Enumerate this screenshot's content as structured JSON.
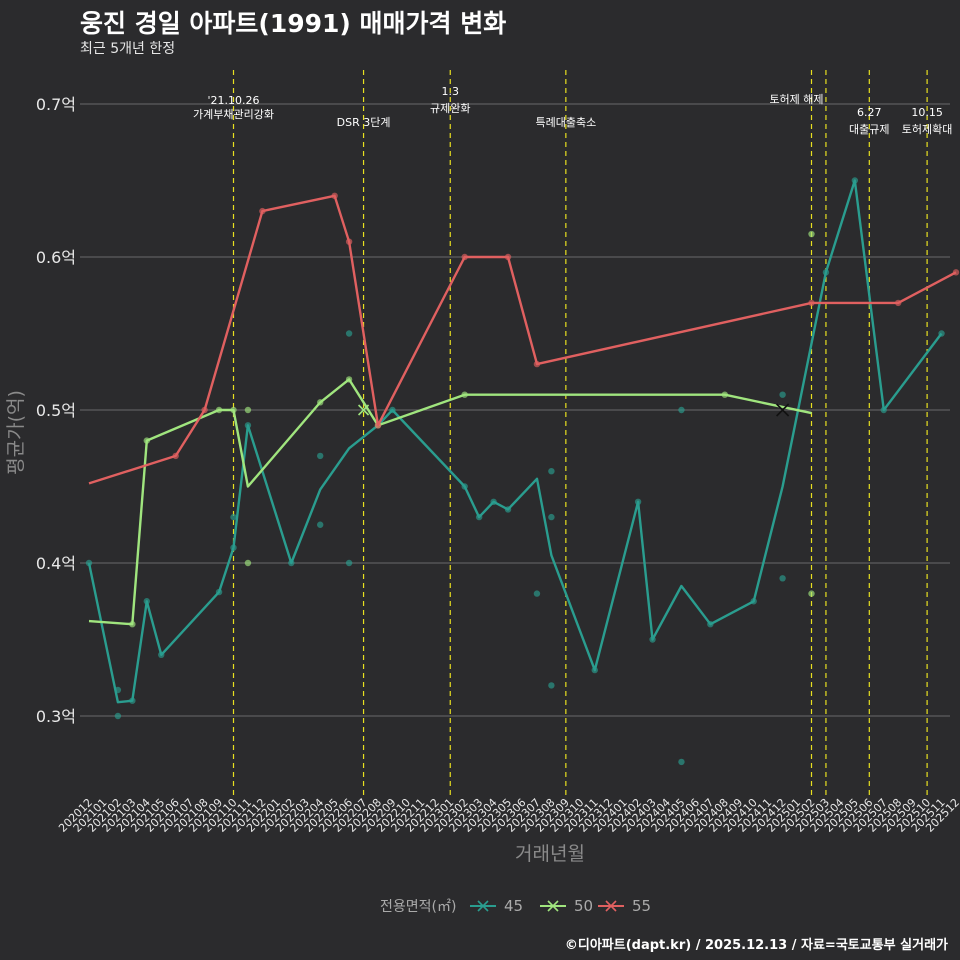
{
  "header": {
    "title": "웅진 경일 아파트(1991) 매매가격 변화",
    "subtitle": "최근 5개년 한정"
  },
  "footer": {
    "caption": "©디아파트(dapt.kr) / 2025.12.13 / 자료=국토교통부 실거래가"
  },
  "chart_data": {
    "type": "line",
    "title": "웅진 경일 아파트(1991) 매매가격 변화",
    "xlabel": "거래년월",
    "ylabel": "평균가(억)",
    "ylim": [
      0.25,
      0.72
    ],
    "yticks": [
      0.3,
      0.4,
      0.5,
      0.6,
      0.7
    ],
    "ytick_labels": [
      "0.3억",
      "0.4억",
      "0.5억",
      "0.6억",
      "0.7억"
    ],
    "categories": [
      "202012",
      "202101",
      "202102",
      "202103",
      "202104",
      "202105",
      "202106",
      "202107",
      "202108",
      "202109",
      "202110",
      "202111",
      "202112",
      "202201",
      "202202",
      "202203",
      "202204",
      "202205",
      "202206",
      "202207",
      "202208",
      "202209",
      "202210",
      "202211",
      "202212",
      "202301",
      "202302",
      "202303",
      "202304",
      "202305",
      "202306",
      "202307",
      "202308",
      "202309",
      "202310",
      "202311",
      "202312",
      "202401",
      "202402",
      "202403",
      "202404",
      "202405",
      "202406",
      "202407",
      "202408",
      "202409",
      "202410",
      "202411",
      "202412",
      "202501",
      "202502",
      "202503",
      "202504",
      "202505",
      "202506",
      "202507",
      "202508",
      "202509",
      "202510",
      "202511",
      "202512"
    ],
    "legend": {
      "title": "전용면적(㎡)",
      "position": "bottom"
    },
    "series": [
      {
        "name": "45",
        "color": "#2a9d8f",
        "line": [
          [
            "202012",
            0.4
          ],
          [
            "202102",
            0.309
          ],
          [
            "202103",
            0.31
          ],
          [
            "202104",
            0.375
          ],
          [
            "202105",
            0.34
          ],
          [
            "202109",
            0.381
          ],
          [
            "202110",
            0.41
          ],
          [
            "202111",
            0.49
          ],
          [
            "202202",
            0.4
          ],
          [
            "202204",
            0.448
          ],
          [
            "202206",
            0.475
          ],
          [
            "202208",
            0.49
          ],
          [
            "202209",
            0.5
          ],
          [
            "202302",
            0.45
          ],
          [
            "202303",
            0.43
          ],
          [
            "202304",
            0.44
          ],
          [
            "202305",
            0.435
          ],
          [
            "202307",
            0.455
          ],
          [
            "202308",
            0.405
          ],
          [
            "202311",
            0.33
          ],
          [
            "202402",
            0.44
          ],
          [
            "202403",
            0.35
          ],
          [
            "202405",
            0.385
          ],
          [
            "202407",
            0.36
          ],
          [
            "202410",
            0.375
          ],
          [
            "202412",
            0.45
          ],
          [
            "202503",
            0.59
          ],
          [
            "202505",
            0.65
          ],
          [
            "202507",
            0.5
          ],
          [
            "202511",
            0.55
          ]
        ],
        "points": [
          [
            "202012",
            0.4
          ],
          [
            "202102",
            0.317
          ],
          [
            "202102",
            0.3
          ],
          [
            "202103",
            0.31
          ],
          [
            "202104",
            0.375
          ],
          [
            "202105",
            0.34
          ],
          [
            "202109",
            0.381
          ],
          [
            "202110",
            0.43
          ],
          [
            "202110",
            0.41
          ],
          [
            "202111",
            0.49
          ],
          [
            "202202",
            0.4
          ],
          [
            "202204",
            0.47
          ],
          [
            "202204",
            0.425
          ],
          [
            "202206",
            0.55
          ],
          [
            "202206",
            0.4
          ],
          [
            "202209",
            0.5
          ],
          [
            "202302",
            0.45
          ],
          [
            "202303",
            0.43
          ],
          [
            "202304",
            0.44
          ],
          [
            "202305",
            0.435
          ],
          [
            "202307",
            0.38
          ],
          [
            "202308",
            0.46
          ],
          [
            "202308",
            0.43
          ],
          [
            "202308",
            0.32
          ],
          [
            "202311",
            0.33
          ],
          [
            "202402",
            0.44
          ],
          [
            "202403",
            0.35
          ],
          [
            "202405",
            0.5
          ],
          [
            "202405",
            0.27
          ],
          [
            "202407",
            0.36
          ],
          [
            "202410",
            0.375
          ],
          [
            "202412",
            0.51
          ],
          [
            "202412",
            0.39
          ],
          [
            "202503",
            0.59
          ],
          [
            "202505",
            0.65
          ],
          [
            "202507",
            0.5
          ],
          [
            "202511",
            0.55
          ]
        ]
      },
      {
        "name": "50",
        "color": "#a0e57e",
        "line": [
          [
            "202012",
            0.362
          ],
          [
            "202103",
            0.36
          ],
          [
            "202104",
            0.48
          ],
          [
            "202109",
            0.5
          ],
          [
            "202110",
            0.5
          ],
          [
            "202111",
            0.45
          ],
          [
            "202204",
            0.505
          ],
          [
            "202206",
            0.52
          ],
          [
            "202208",
            0.49
          ],
          [
            "202302",
            0.51
          ],
          [
            "202408",
            0.51
          ],
          [
            "202502",
            0.498
          ]
        ],
        "points": [
          [
            "202103",
            0.36
          ],
          [
            "202104",
            0.48
          ],
          [
            "202109",
            0.5
          ],
          [
            "202110",
            0.5
          ],
          [
            "202111",
            0.5
          ],
          [
            "202111",
            0.4
          ],
          [
            "202204",
            0.505
          ],
          [
            "202206",
            0.52
          ],
          [
            "202208",
            0.49
          ],
          [
            "202302",
            0.51
          ],
          [
            "202408",
            0.51
          ],
          [
            "202502",
            0.615
          ],
          [
            "202502",
            0.38
          ]
        ]
      },
      {
        "name": "55",
        "color": "#e06060",
        "line": [
          [
            "202012",
            0.452
          ],
          [
            "202106",
            0.47
          ],
          [
            "202108",
            0.5
          ],
          [
            "202112",
            0.63
          ],
          [
            "202205",
            0.64
          ],
          [
            "202206",
            0.61
          ],
          [
            "202208",
            0.49
          ],
          [
            "202302",
            0.6
          ],
          [
            "202305",
            0.6
          ],
          [
            "202307",
            0.53
          ],
          [
            "202502",
            0.57
          ],
          [
            "202507",
            0.57
          ],
          [
            "202508",
            0.57
          ],
          [
            "202512",
            0.59
          ]
        ],
        "points": [
          [
            "202106",
            0.47
          ],
          [
            "202108",
            0.5
          ],
          [
            "202112",
            0.63
          ],
          [
            "202205",
            0.64
          ],
          [
            "202206",
            0.61
          ],
          [
            "202208",
            0.49
          ],
          [
            "202302",
            0.6
          ],
          [
            "202305",
            0.6
          ],
          [
            "202307",
            0.53
          ],
          [
            "202502",
            0.57
          ],
          [
            "202508",
            0.57
          ],
          [
            "202512",
            0.59
          ]
        ]
      }
    ],
    "annotations": [
      {
        "x": "202110",
        "lines": [
          "'21.10.26",
          "가계부채관리강화"
        ]
      },
      {
        "x": "202207",
        "lines": [
          "DSR 3단계"
        ]
      },
      {
        "x": "202301",
        "lines": [
          "1.3",
          "규제완화"
        ]
      },
      {
        "x": "202309",
        "lines": [
          "특례대출축소"
        ]
      },
      {
        "x": "202502",
        "lines": [
          "토허제 해제"
        ]
      },
      {
        "x": "202503",
        "lines": []
      },
      {
        "x": "202506",
        "lines": [
          "6.27",
          "대출규제"
        ]
      },
      {
        "x": "202510",
        "lines": [
          "10.15",
          "토허제확대"
        ]
      }
    ]
  }
}
